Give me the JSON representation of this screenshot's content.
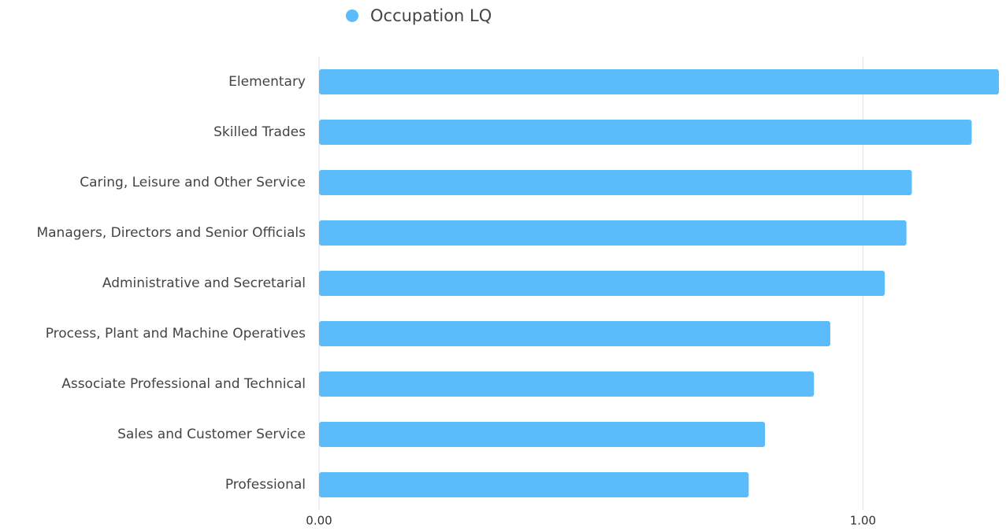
{
  "chart_data": {
    "type": "bar",
    "orientation": "horizontal",
    "categories": [
      "Elementary",
      "Skilled Trades",
      "Caring, Leisure and Other Service",
      "Managers, Directors and Senior Officials",
      "Administrative and Secretarial",
      "Process, Plant and Machine Operatives",
      "Associate Professional and Technical",
      "Sales and Customer Service",
      "Professional"
    ],
    "series": [
      {
        "name": "Occupation LQ",
        "color": "#5bbcfc",
        "values": [
          1.25,
          1.2,
          1.09,
          1.08,
          1.04,
          0.94,
          0.91,
          0.82,
          0.79
        ]
      }
    ],
    "xlim": [
      0,
      1.25
    ],
    "xticks": [
      {
        "value": 0,
        "label": "0.00"
      },
      {
        "value": 1,
        "label": "1.00"
      }
    ],
    "grid": true,
    "legend": "top"
  }
}
